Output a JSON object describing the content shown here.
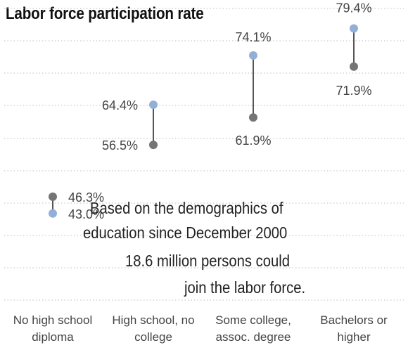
{
  "chart_data": {
    "type": "dumbbell",
    "title": "Labor force participation rate",
    "categories": [
      "No high school\ndiploma",
      "High school, no\ncollege",
      "Some college,\nassoc. degree",
      "Bachelors or\nhigher"
    ],
    "series": [
      {
        "values": [
          46.3,
          56.5,
          61.9,
          71.9
        ],
        "labels": [
          "46.3%",
          "56.5%",
          "61.9%",
          "71.9%"
        ],
        "color": "#757575"
      },
      {
        "values": [
          43.0,
          64.4,
          74.1,
          79.4
        ],
        "labels": [
          "43.0%",
          "64.4%",
          "74.1%",
          "79.4%"
        ],
        "color": "#92b0d6"
      }
    ],
    "ylim": [
      25,
      85
    ],
    "grid": true,
    "annotation": [
      "Based on the demographics of",
      "education since December 2000",
      "18.6 million persons could",
      "join the labor force."
    ]
  },
  "colors": {
    "connector": "#555555",
    "grid": "#bdbdbd",
    "text": "#444444"
  }
}
